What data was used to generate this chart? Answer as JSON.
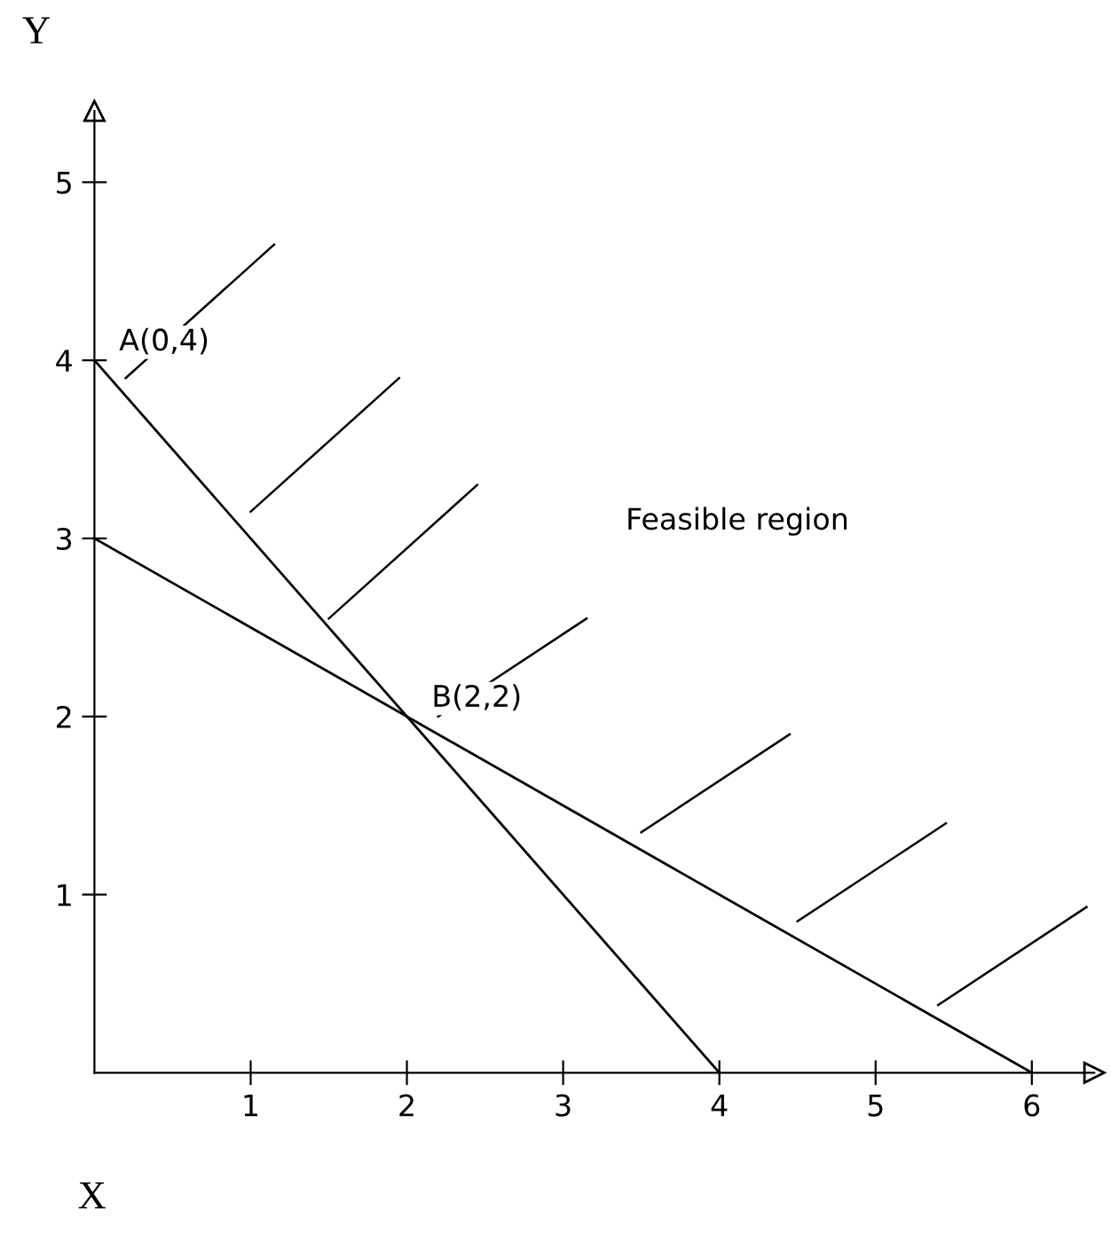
{
  "chart_data": {
    "type": "line",
    "xlabel": "X",
    "ylabel": "Y",
    "series": [
      {
        "color": "#000000",
        "x": [
          0,
          4
        ],
        "values": [
          4,
          0
        ]
      },
      {
        "color": "#000000",
        "x": [
          0,
          6
        ],
        "values": [
          3,
          0
        ]
      }
    ],
    "xlim": [
      0,
      6.4
    ],
    "ylim": [
      0,
      5.4
    ],
    "xticks": [
      1,
      2,
      3,
      4,
      5,
      6
    ],
    "yticks": [
      1,
      2,
      3,
      4,
      5
    ],
    "annotations": [
      {
        "text": "A(0,4)",
        "x": 0,
        "y": 4
      },
      {
        "text": "B(2,2)",
        "x": 2,
        "y": 2
      },
      "Feasible region"
    ],
    "grid": false,
    "legend": false,
    "marker": "none",
    "line_style": "solid"
  }
}
